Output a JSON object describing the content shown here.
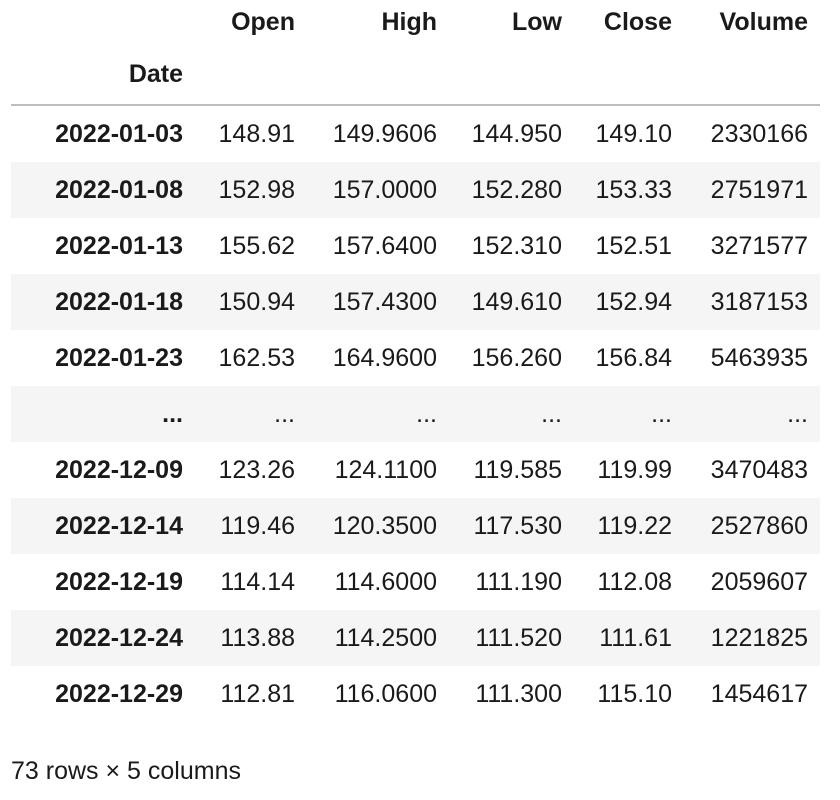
{
  "table": {
    "columns": [
      "Open",
      "High",
      "Low",
      "Close",
      "Volume"
    ],
    "index_name": "Date",
    "rows": [
      {
        "date": "2022-01-03",
        "cells": [
          "148.91",
          "149.9606",
          "144.950",
          "149.10",
          "2330166"
        ]
      },
      {
        "date": "2022-01-08",
        "cells": [
          "152.98",
          "157.0000",
          "152.280",
          "153.33",
          "2751971"
        ]
      },
      {
        "date": "2022-01-13",
        "cells": [
          "155.62",
          "157.6400",
          "152.310",
          "152.51",
          "3271577"
        ]
      },
      {
        "date": "2022-01-18",
        "cells": [
          "150.94",
          "157.4300",
          "149.610",
          "152.94",
          "3187153"
        ]
      },
      {
        "date": "2022-01-23",
        "cells": [
          "162.53",
          "164.9600",
          "156.260",
          "156.84",
          "5463935"
        ]
      },
      {
        "date": "...",
        "cells": [
          "...",
          "...",
          "...",
          "...",
          "..."
        ]
      },
      {
        "date": "2022-12-09",
        "cells": [
          "123.26",
          "124.1100",
          "119.585",
          "119.99",
          "3470483"
        ]
      },
      {
        "date": "2022-12-14",
        "cells": [
          "119.46",
          "120.3500",
          "117.530",
          "119.22",
          "2527860"
        ]
      },
      {
        "date": "2022-12-19",
        "cells": [
          "114.14",
          "114.6000",
          "111.190",
          "112.08",
          "2059607"
        ]
      },
      {
        "date": "2022-12-24",
        "cells": [
          "113.88",
          "114.2500",
          "111.520",
          "111.61",
          "1221825"
        ]
      },
      {
        "date": "2022-12-29",
        "cells": [
          "112.81",
          "116.0600",
          "111.300",
          "115.10",
          "1454617"
        ]
      }
    ]
  },
  "footer": {
    "shape_text": "73 rows × 5 columns"
  }
}
